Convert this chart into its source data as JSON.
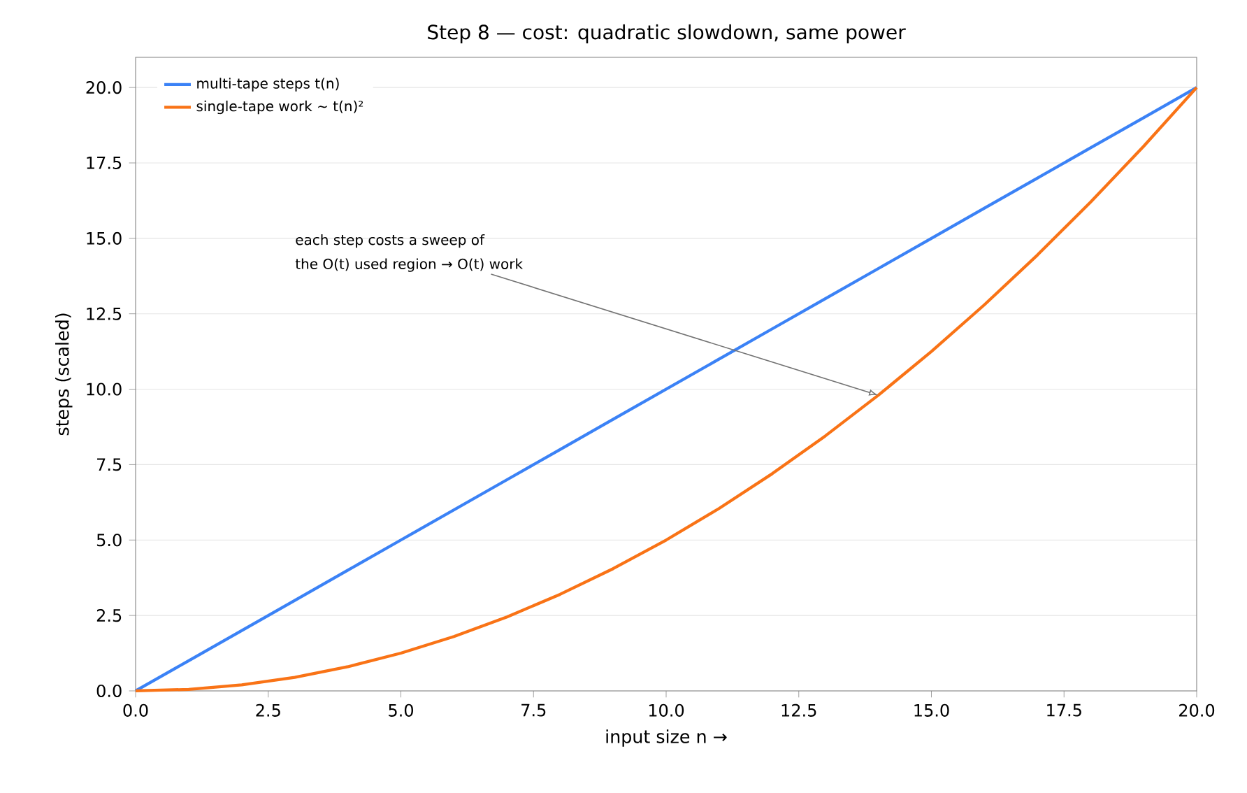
{
  "chart_data": {
    "type": "line",
    "title": "Step 8 — cost: quadratic slowdown, same power",
    "xlabel": "input size n  →",
    "ylabel": "steps (scaled)",
    "x": [
      0,
      1,
      2,
      3,
      4,
      5,
      6,
      7,
      8,
      9,
      10,
      11,
      12,
      13,
      14,
      15,
      16,
      17,
      18,
      19,
      20
    ],
    "series": [
      {
        "name": "multi-tape steps  t(n)",
        "color": "#3b82f6",
        "values": [
          0,
          1,
          2,
          3,
          4,
          5,
          6,
          7,
          8,
          9,
          10,
          11,
          12,
          13,
          14,
          15,
          16,
          17,
          18,
          19,
          20
        ]
      },
      {
        "name": "single-tape work  ~ t(n)²",
        "color": "#f97316",
        "values": [
          0,
          0.05,
          0.2,
          0.45,
          0.8,
          1.25,
          1.8,
          2.45,
          3.2,
          4.05,
          5,
          6.05,
          7.2,
          8.45,
          9.8,
          11.25,
          12.8,
          14.45,
          16.2,
          18.05,
          20
        ]
      }
    ],
    "xlim": [
      0,
      20
    ],
    "ylim": [
      0,
      21
    ],
    "xticks": [
      {
        "value": 0,
        "label": "0.0"
      },
      {
        "value": 2.5,
        "label": "2.5"
      },
      {
        "value": 5,
        "label": "5.0"
      },
      {
        "value": 7.5,
        "label": "7.5"
      },
      {
        "value": 10,
        "label": "10.0"
      },
      {
        "value": 12.5,
        "label": "12.5"
      },
      {
        "value": 15,
        "label": "15.0"
      },
      {
        "value": 17.5,
        "label": "17.5"
      },
      {
        "value": 20,
        "label": "20.0"
      }
    ],
    "yticks": [
      {
        "value": 0,
        "label": "0.0"
      },
      {
        "value": 2.5,
        "label": "2.5"
      },
      {
        "value": 5,
        "label": "5.0"
      },
      {
        "value": 7.5,
        "label": "7.5"
      },
      {
        "value": 10,
        "label": "10.0"
      },
      {
        "value": 12.5,
        "label": "12.5"
      },
      {
        "value": 15,
        "label": "15.0"
      },
      {
        "value": 17.5,
        "label": "17.5"
      },
      {
        "value": 20,
        "label": "20.0"
      }
    ],
    "grid": "y",
    "legend": "top left",
    "marker": "none",
    "line_style": "solid",
    "annotations": [
      "each step costs a sweep of",
      {
        "text": "the O(t) used region → O(t) work",
        "x": 14,
        "y": 9.8
      }
    ]
  }
}
